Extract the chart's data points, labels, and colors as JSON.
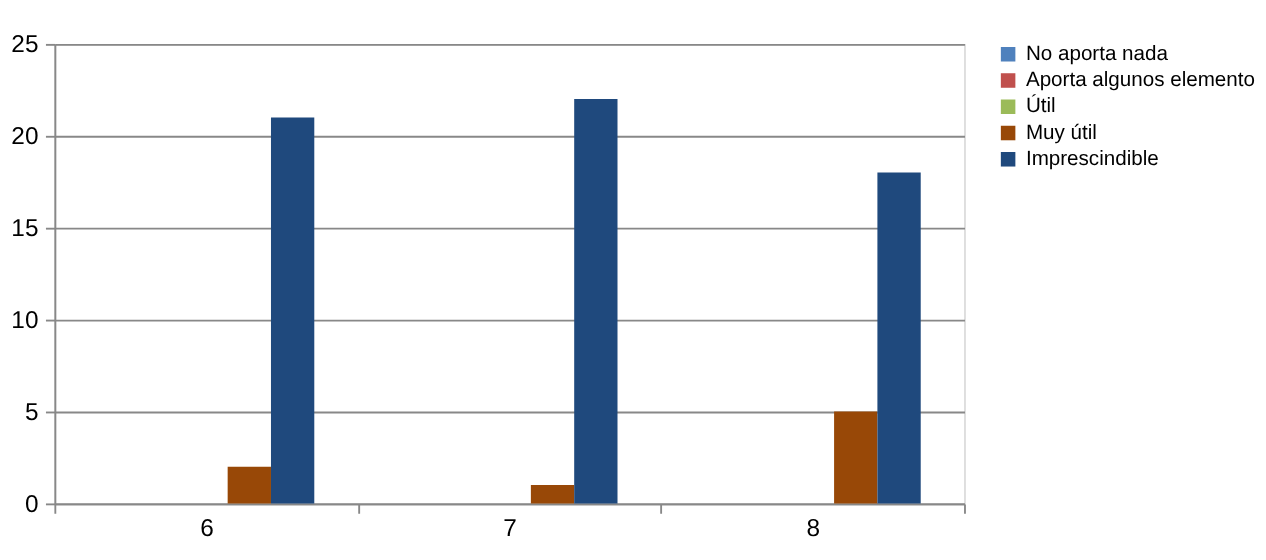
{
  "chart_data": {
    "type": "bar",
    "categories": [
      "6",
      "7",
      "8"
    ],
    "series": [
      {
        "name": "No aporta nada",
        "color": "#4f81bd",
        "values": [
          0,
          0,
          0
        ]
      },
      {
        "name": "Aporta algunos elemento",
        "color": "#c0504d",
        "values": [
          0,
          0,
          0
        ]
      },
      {
        "name": "Útil",
        "color": "#9bbb59",
        "values": [
          0,
          0,
          0
        ]
      },
      {
        "name": "Muy útil",
        "color": "#984807",
        "values": [
          2,
          1,
          5
        ]
      },
      {
        "name": "Imprescindible",
        "color": "#1f497d",
        "values": [
          21,
          22,
          18
        ]
      }
    ],
    "ylim": [
      0,
      25
    ],
    "yticks": [
      0,
      5,
      10,
      15,
      20,
      25
    ],
    "grid": "y",
    "legend": "right"
  }
}
